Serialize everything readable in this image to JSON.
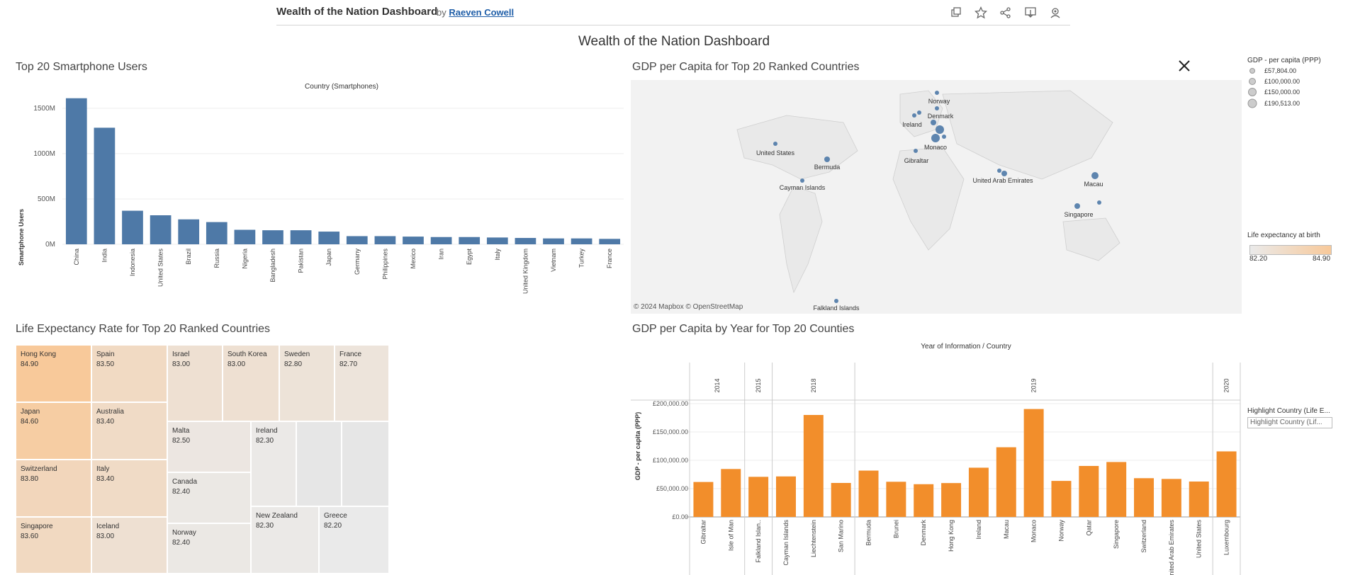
{
  "toolbar": {
    "title": "Wealth of the Nation Dashboard",
    "by": "by",
    "author": "Raeven Cowell",
    "icons": [
      "duplicate-icon",
      "favorite-star-icon",
      "share-icon",
      "download-icon",
      "watch-icon"
    ]
  },
  "dashboard_title": "Wealth of the Nation Dashboard",
  "panels": {
    "smartphones": {
      "title": "Top 20 Smartphone Users"
    },
    "map": {
      "title": "GDP per Capita for Top 20 Ranked Countries",
      "credit": "© 2024 Mapbox © OpenStreetMap"
    },
    "life": {
      "title": "Life Expectancy Rate for Top 20 Ranked Countries"
    },
    "gdp_year": {
      "title": "GDP per Capita by Year for Top 20 Counties"
    }
  },
  "legends": {
    "gdp_size": {
      "title": "GDP - per capita (PPP)",
      "items": [
        "£57,804.00",
        "£100,000.00",
        "£150,000.00",
        "£190,513.00"
      ]
    },
    "life_color": {
      "title": "Life expectancy at birth",
      "min": "82.20",
      "max": "84.90",
      "from_color": "#eaeaea",
      "to_color": "#f8c99a"
    },
    "highlight": {
      "title": "Highlight Country (Life E...",
      "placeholder": "Highlight Country (Lif..."
    }
  },
  "colors": {
    "bar_blue": "#4e79a7",
    "bar_orange": "#f28e2b",
    "map_dot": "#4e79a7"
  },
  "chart_data": [
    {
      "type": "bar",
      "title": "Top 20 Smartphone Users",
      "header": "Country (Smartphones)",
      "ylabel": "Smartphone Users",
      "ylim": [
        0,
        1600
      ],
      "yticks": [
        "0M",
        "500M",
        "1000M",
        "1500M"
      ],
      "categories": [
        "China",
        "India",
        "Indonesia",
        "United States",
        "Brazil",
        "Russia",
        "Nigeria",
        "Bangladesh",
        "Pakistan",
        "Japan",
        "Germany",
        "Philippines",
        "Mexico",
        "Iran",
        "Egypt",
        "Italy",
        "United Kingdom",
        "Vietnam",
        "Turkey",
        "France"
      ],
      "values": [
        1610,
        1285,
        370,
        320,
        275,
        245,
        160,
        155,
        155,
        140,
        90,
        90,
        85,
        80,
        80,
        75,
        70,
        65,
        65,
        60
      ]
    },
    {
      "type": "bar",
      "title": "GDP per Capita by Year for Top 20 Counties",
      "header": "Year of Information / Country",
      "ylabel": "GDP - per capita (PPP)",
      "ylim": [
        0,
        200000
      ],
      "yticks": [
        "£0.00",
        "£50,000.00",
        "£100,000.00",
        "£150,000.00",
        "£200,000.00"
      ],
      "groups": [
        {
          "year": "2014",
          "countries": [
            "Gibraltar",
            "Isle of Man"
          ],
          "values": [
            61700,
            84600
          ]
        },
        {
          "year": "2015",
          "countries": [
            "Falkland Islan.."
          ],
          "values": [
            70800
          ]
        },
        {
          "year": "2018",
          "countries": [
            "Cayman Islands",
            "Liechtenstein",
            "San Marino"
          ],
          "values": [
            71500,
            180000,
            60000
          ]
        },
        {
          "year": "2019",
          "countries": [
            "Bermuda",
            "Brunei",
            "Denmark",
            "Hong Kong",
            "Ireland",
            "Macau",
            "Monaco",
            "Norway",
            "Qatar",
            "Singapore",
            "Switzerland",
            "United Arab Emirates",
            "United States"
          ],
          "values": [
            81800,
            62100,
            57800,
            59800,
            86900,
            123000,
            190500,
            63600,
            90000,
            97000,
            68400,
            67100,
            62500
          ]
        },
        {
          "year": "2020",
          "countries": [
            "Luxembourg"
          ],
          "values": [
            115700
          ]
        }
      ]
    },
    {
      "type": "heatmap",
      "title": "Life Expectancy Rate for Top 20 Ranked Countries",
      "cells": [
        {
          "country": "Hong Kong",
          "value": "84.90"
        },
        {
          "country": "Japan",
          "value": "84.60"
        },
        {
          "country": "Switzerland",
          "value": "83.80"
        },
        {
          "country": "Singapore",
          "value": "83.60"
        },
        {
          "country": "Spain",
          "value": "83.50"
        },
        {
          "country": "Australia",
          "value": "83.40"
        },
        {
          "country": "Italy",
          "value": "83.40"
        },
        {
          "country": "Iceland",
          "value": "83.00"
        },
        {
          "country": "Israel",
          "value": "83.00"
        },
        {
          "country": "South Korea",
          "value": "83.00"
        },
        {
          "country": "Sweden",
          "value": "82.80"
        },
        {
          "country": "France",
          "value": "82.70"
        },
        {
          "country": "Malta",
          "value": "82.50"
        },
        {
          "country": "Ireland",
          "value": "82.30"
        },
        {
          "country": "Canada",
          "value": "82.40"
        },
        {
          "country": "Norway",
          "value": "82.40"
        },
        {
          "country": "New Zealand",
          "value": "82.30"
        },
        {
          "country": "Greece",
          "value": "82.20"
        }
      ]
    }
  ],
  "map_labels": [
    "Norway",
    "Denmark",
    "Ireland",
    "Monaco",
    "Gibraltar",
    "United States",
    "Bermuda",
    "Cayman Islands",
    "United Arab Emirates",
    "Macau",
    "Singapore",
    "Falkland Islands"
  ]
}
